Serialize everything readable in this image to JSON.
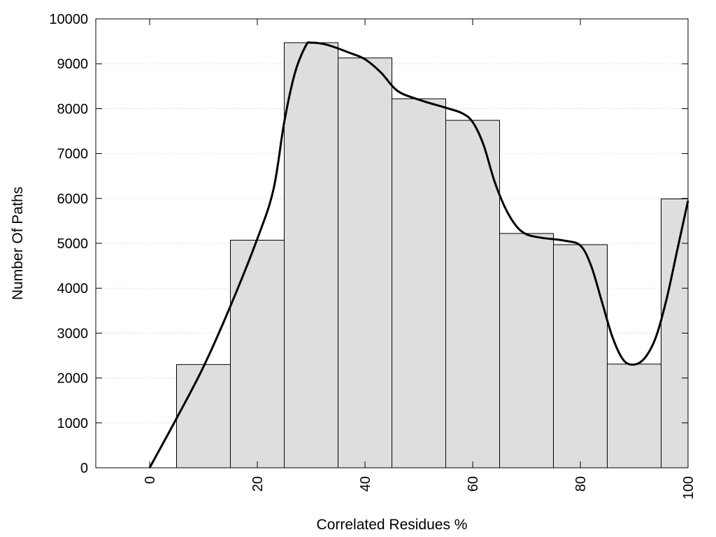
{
  "chart_data": {
    "type": "bar",
    "xlabel": "Correlated Residues %",
    "ylabel": "Number Of Paths",
    "xlim": [
      -10,
      100
    ],
    "ylim": [
      0,
      10000
    ],
    "bin_width": 10,
    "x_ticks": [
      0,
      20,
      40,
      60,
      80,
      100
    ],
    "y_ticks": [
      0,
      1000,
      2000,
      3000,
      4000,
      5000,
      6000,
      7000,
      8000,
      9000,
      10000
    ],
    "grid": "horizontal dotted",
    "categories": [
      10,
      20,
      30,
      40,
      50,
      60,
      70,
      80,
      90,
      100
    ],
    "values": [
      2300,
      5070,
      9470,
      9130,
      8220,
      7740,
      5220,
      4970,
      2310,
      5990
    ],
    "curve": {
      "x": [
        0,
        5,
        10,
        15,
        20,
        23,
        25,
        27,
        29,
        30,
        33,
        37,
        40,
        43,
        46,
        50,
        55,
        58,
        60,
        62,
        64,
        66,
        68,
        70,
        73,
        77,
        80,
        82,
        84,
        86,
        88,
        90,
        92,
        94,
        96,
        98,
        100
      ],
      "y": [
        0,
        1100,
        2250,
        3600,
        5100,
        6200,
        7700,
        8800,
        9400,
        9470,
        9420,
        9250,
        9100,
        8800,
        8400,
        8200,
        8020,
        7900,
        7700,
        7200,
        6400,
        5800,
        5400,
        5200,
        5120,
        5060,
        4950,
        4500,
        3700,
        2900,
        2400,
        2300,
        2450,
        2900,
        3750,
        4850,
        5950
      ]
    },
    "colors": {
      "bar_fill": "#dedede",
      "bar_stroke": "#000000",
      "curve": "#000000",
      "grid": "#bfbfbf"
    }
  }
}
